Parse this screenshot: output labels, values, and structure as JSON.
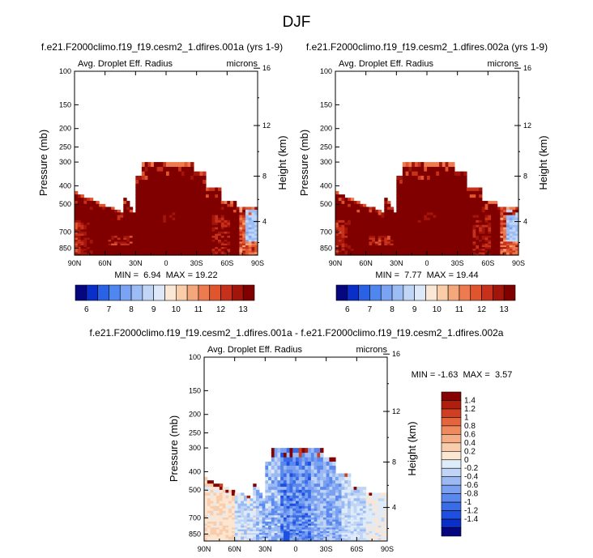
{
  "page": {
    "title": "DJF"
  },
  "chart_data": [
    {
      "type": "heatmap",
      "title": "f.e21.F2000climo.f19_f19.cesm2_1.dfires.001a (yrs 1-9)",
      "left_label": "Avg. Droplet Eff. Radius",
      "right_label": "microns",
      "xlabel": "",
      "ylabel": "Pressure (mb)",
      "y2label": "Height (km)",
      "x_ticks": [
        "90N",
        "60N",
        "30N",
        "0",
        "30S",
        "60S",
        "90S"
      ],
      "y_ticks": [
        "100",
        "150",
        "200",
        "250",
        "300",
        "400",
        "500",
        "700",
        "850"
      ],
      "y2_ticks": [
        "16",
        "12",
        "8",
        "4"
      ],
      "stats": "MIN =  6.94  MAX = 19.22",
      "min": 6.94,
      "max": 19.22,
      "colorbar_labels": [
        "6",
        "7",
        "8",
        "9",
        "10",
        "11",
        "12",
        "13"
      ]
    },
    {
      "type": "heatmap",
      "title": "f.e21.F2000climo.f19_f19.cesm2_1.dfires.002a (yrs 1-9)",
      "left_label": "Avg. Droplet Eff. Radius",
      "right_label": "microns",
      "xlabel": "",
      "ylabel": "Pressure (mb)",
      "y2label": "Height (km)",
      "x_ticks": [
        "90N",
        "60N",
        "30N",
        "0",
        "30S",
        "60S",
        "90S"
      ],
      "y_ticks": [
        "100",
        "150",
        "200",
        "250",
        "300",
        "400",
        "500",
        "700",
        "850"
      ],
      "y2_ticks": [
        "16",
        "12",
        "8",
        "4"
      ],
      "stats": "MIN =  7.77  MAX = 19.44",
      "min": 7.77,
      "max": 19.44,
      "colorbar_labels": [
        "6",
        "7",
        "8",
        "9",
        "10",
        "11",
        "12",
        "13"
      ]
    },
    {
      "type": "heatmap",
      "title": "f.e21.F2000climo.f19_f19.cesm2_1.dfires.001a - f.e21.F2000climo.f19_f19.cesm2_1.dfires.002a",
      "left_label": "Avg. Droplet Eff. Radius",
      "right_label": "microns",
      "xlabel": "",
      "ylabel": "Pressure (mb)",
      "y2label": "Height (km)",
      "x_ticks": [
        "90N",
        "60N",
        "30N",
        "0",
        "30S",
        "60S",
        "90S"
      ],
      "y_ticks": [
        "100",
        "150",
        "200",
        "250",
        "300",
        "400",
        "500",
        "700",
        "850"
      ],
      "y2_ticks": [
        "16",
        "12",
        "8",
        "4"
      ],
      "stats": "MIN = -1.63  MAX =  3.57",
      "min": -1.63,
      "max": 3.57,
      "colorbar_labels": [
        "1.4",
        "1.2",
        "1",
        "0.8",
        "0.6",
        "0.4",
        "0.2",
        "0",
        "-0.2",
        "-0.4",
        "-0.6",
        "-0.8",
        "-1",
        "-1.2",
        "-1.4"
      ]
    }
  ],
  "colors": {
    "abs_palette": [
      "#06067f",
      "#0a2fc9",
      "#2a62e6",
      "#4f86f0",
      "#7aa4f3",
      "#9cbcf5",
      "#c1d6f7",
      "#dde8f8",
      "#fbe7d5",
      "#f9cdaa",
      "#f5a77c",
      "#ee7a4f",
      "#e0552e",
      "#c7301a",
      "#a3150b",
      "#800000"
    ],
    "diff_palette": [
      "#06067f",
      "#0a2fc9",
      "#1f4fe0",
      "#3a6ce8",
      "#5a88ee",
      "#7aa1f1",
      "#9bbaf4",
      "#c0d4f6",
      "#deebf8",
      "#fce6d2",
      "#f9ccac",
      "#f5ad85",
      "#ef8a5f",
      "#e4643c",
      "#cf3f20",
      "#b01f0e",
      "#850202"
    ],
    "fill_red": "#a3150b"
  }
}
